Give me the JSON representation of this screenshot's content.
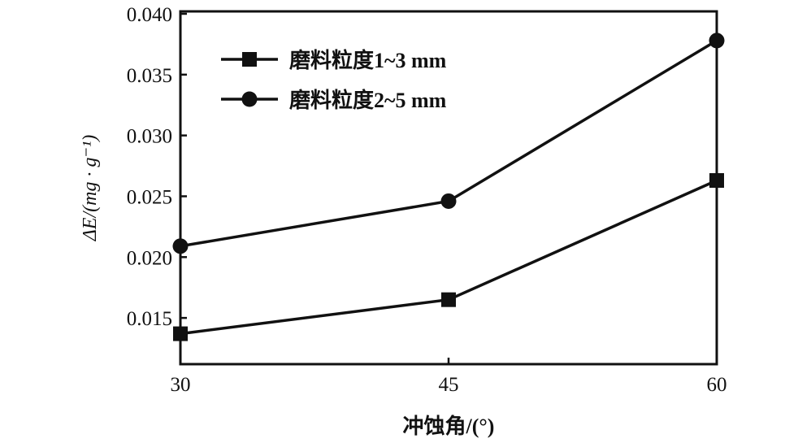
{
  "chart_data": {
    "type": "line",
    "title": "",
    "xlabel": "冲蚀角/(°)",
    "ylabel": "ΔE/(mg · g⁻¹)",
    "x": [
      30,
      45,
      60
    ],
    "x_ticks": [
      "30",
      "45",
      "60"
    ],
    "y_ticks": [
      "0.015",
      "0.020",
      "0.025",
      "0.030",
      "0.035",
      "0.040"
    ],
    "y_tick_values": [
      0.015,
      0.02,
      0.025,
      0.03,
      0.035,
      0.04
    ],
    "xlim": [
      30,
      60
    ],
    "ylim": [
      0.0112,
      0.0402
    ],
    "grid": false,
    "legend_position": "top-left",
    "series": [
      {
        "name": "磨料粒度1~3 mm",
        "marker": "square",
        "color": "#111111",
        "values": [
          0.0137,
          0.0165,
          0.0263
        ]
      },
      {
        "name": "磨料粒度2~5 mm",
        "marker": "circle",
        "color": "#111111",
        "values": [
          0.0209,
          0.0246,
          0.0378
        ]
      }
    ]
  }
}
